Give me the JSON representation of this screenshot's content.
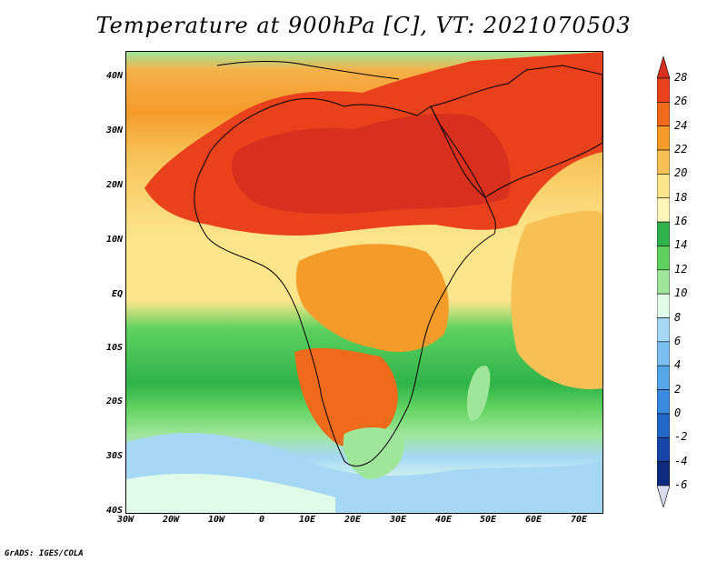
{
  "title": "Temperature at 900hPa [C], VT: 2021070503",
  "credit": "GrADS: IGES/COLA",
  "map": {
    "lon_range": [
      -30,
      75
    ],
    "lat_range": [
      -40,
      45
    ],
    "lat_labels": [
      "40N",
      "30N",
      "20N",
      "10N",
      "EQ",
      "10S",
      "20S",
      "30S",
      "40S"
    ],
    "lon_labels": [
      "30W",
      "20W",
      "10W",
      "0",
      "10E",
      "20E",
      "30E",
      "40E",
      "50E",
      "60E",
      "70E"
    ]
  },
  "colorbar": {
    "levels": [
      "28",
      "26",
      "24",
      "22",
      "20",
      "18",
      "16",
      "14",
      "12",
      "10",
      "8",
      "6",
      "4",
      "2",
      "0",
      "-2",
      "-4",
      "-6"
    ],
    "colors": [
      "#d7301f",
      "#e8411c",
      "#f06a1c",
      "#f59b2a",
      "#f8c155",
      "#fde58c",
      "#fff6b8",
      "#2fb34a",
      "#5fd15f",
      "#9fe69a",
      "#e0fbe8",
      "#a6d8f6",
      "#7cc0f2",
      "#56a6ea",
      "#3a8ae0",
      "#2368c8",
      "#1546a8",
      "#0e2a80",
      "#d9d9f0"
    ]
  }
}
